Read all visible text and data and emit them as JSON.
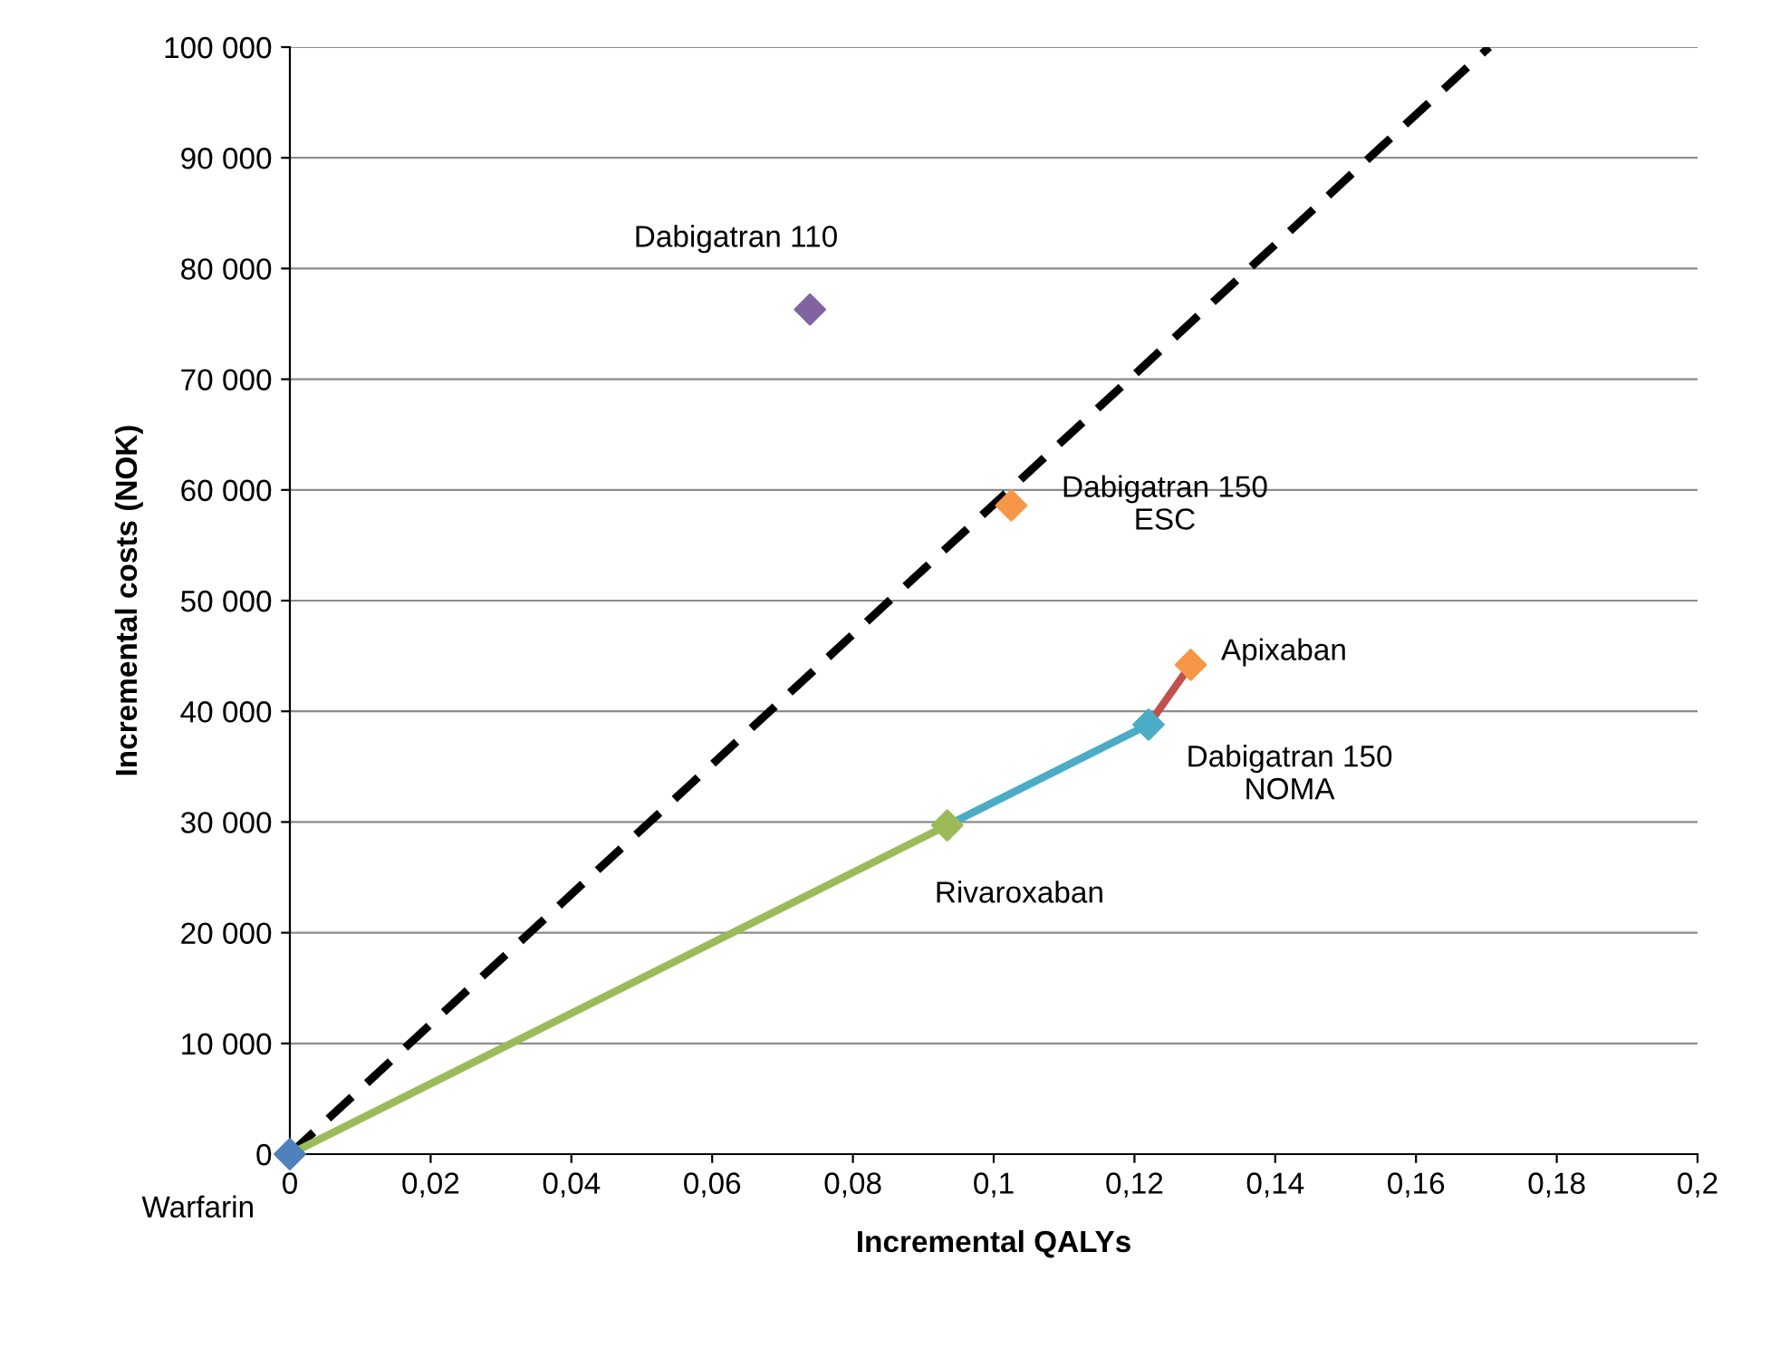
{
  "chart_data": {
    "type": "scatter",
    "xlabel": "Incremental QALYs",
    "ylabel": "Incremental costs (NOK)",
    "xlim": [
      0,
      0.2
    ],
    "ylim": [
      0,
      100000
    ],
    "xticks": [
      {
        "value": 0,
        "label": "0"
      },
      {
        "value": 0.02,
        "label": "0,02"
      },
      {
        "value": 0.04,
        "label": "0,04"
      },
      {
        "value": 0.06,
        "label": "0,06"
      },
      {
        "value": 0.08,
        "label": "0,08"
      },
      {
        "value": 0.1,
        "label": "0,1"
      },
      {
        "value": 0.12,
        "label": "0,12"
      },
      {
        "value": 0.14,
        "label": "0,14"
      },
      {
        "value": 0.16,
        "label": "0,16"
      },
      {
        "value": 0.18,
        "label": "0,18"
      },
      {
        "value": 0.2,
        "label": "0,2"
      }
    ],
    "yticks": [
      {
        "value": 0,
        "label": "0"
      },
      {
        "value": 10000,
        "label": "10 000"
      },
      {
        "value": 20000,
        "label": "20 000"
      },
      {
        "value": 30000,
        "label": "30 000"
      },
      {
        "value": 40000,
        "label": "40 000"
      },
      {
        "value": 50000,
        "label": "50 000"
      },
      {
        "value": 60000,
        "label": "60 000"
      },
      {
        "value": 70000,
        "label": "70 000"
      },
      {
        "value": 80000,
        "label": "80 000"
      },
      {
        "value": 90000,
        "label": "90 000"
      },
      {
        "value": 100000,
        "label": "100 000"
      }
    ],
    "grid": "y",
    "legend": false,
    "series": [
      {
        "type": "line",
        "x": [
          0,
          0.1704
        ],
        "values": [
          0,
          100000
        ],
        "color": "#000000",
        "line_style": "dashed",
        "marker": "none"
      },
      {
        "type": "line",
        "x": [
          0,
          0.0934
        ],
        "values": [
          0,
          29700
        ],
        "color": "#9bbb59",
        "line_style": "solid",
        "marker": "none"
      },
      {
        "type": "line",
        "x": [
          0.0934,
          0.122
        ],
        "values": [
          29700,
          38800
        ],
        "color": "#4bacc6",
        "line_style": "solid",
        "marker": "none"
      },
      {
        "type": "line",
        "x": [
          0.122,
          0.128
        ],
        "values": [
          38800,
          44200
        ],
        "color": "#c0504d",
        "line_style": "solid",
        "marker": "none"
      },
      {
        "x": [
          0,
          0.0934,
          0.122,
          0.128,
          0.1025,
          0.0739
        ],
        "values": [
          0,
          29700,
          38800,
          44200,
          58600,
          76300
        ],
        "colors": [
          "#4f81bd",
          "#9bbb59",
          "#4bacc6",
          "#f79646",
          "#f79646",
          "#8064a2"
        ],
        "marker": "diamond"
      }
    ],
    "annotations": [
      {
        "text": "Warfarin",
        "x": 0,
        "y": 0
      },
      {
        "text": "Rivaroxaban",
        "x": 0.0934,
        "y": 29700
      },
      {
        "text": "Dabigatran 150\nNOMA",
        "x": 0.122,
        "y": 38800
      },
      {
        "text": "Apixaban",
        "x": 0.128,
        "y": 44200
      },
      {
        "text": "Dabigatran 150\nESC",
        "x": 0.1025,
        "y": 58600
      },
      {
        "text": "Dabigatran 110",
        "x": 0.0739,
        "y": 76300
      }
    ]
  }
}
